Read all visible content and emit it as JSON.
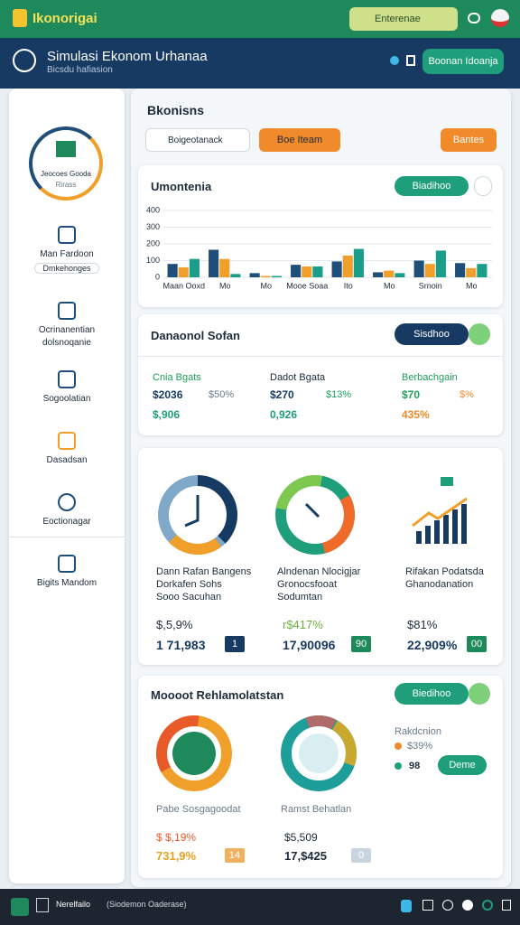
{
  "topbar": {
    "logo": "Ikonorigai",
    "search": "Enterenae"
  },
  "header": {
    "title": "Simulasi Ekonom Urhanaa",
    "subtitle": "Bicsdu hafiasion",
    "button": "Boonan Idoanja"
  },
  "sidebar": {
    "profile": [
      "Jeocoes Gooda",
      "Rirass"
    ],
    "nav": [
      {
        "label": "Man Fardoon",
        "sub": "Dmkehonges"
      },
      {
        "label": "Ocrinanentian",
        "sub": "dolsnoqanie"
      },
      {
        "label": "Sogoolatian"
      },
      {
        "label": "Dasadsan"
      },
      {
        "label": "Eoctionagar"
      },
      {
        "label": "Bigits Mandom"
      }
    ]
  },
  "main": {
    "title": "Bkonisns",
    "search": "Boigeotanack",
    "button1": "Boe Iteam",
    "button2": "Bantes"
  },
  "overview": {
    "title": "Umontenia",
    "button": "Biadihoo",
    "chart": {
      "type": "bar",
      "categories": [
        "Maan Ooxd",
        "Mo",
        "Mo",
        "Mooe Soaa",
        "Ito",
        "Mo",
        "Srnoin",
        "Mo"
      ],
      "series": [
        {
          "color": "#1f4e79",
          "values": [
            80,
            165,
            25,
            75,
            95,
            30,
            100,
            85
          ]
        },
        {
          "color": "#f0a02a",
          "values": [
            60,
            110,
            8,
            65,
            130,
            40,
            80,
            55
          ]
        },
        {
          "color": "#1a9e8a",
          "values": [
            110,
            20,
            8,
            65,
            170,
            25,
            160,
            80
          ]
        }
      ],
      "ylim": [
        0,
        400
      ],
      "yticks": [
        0,
        100,
        200,
        300,
        400
      ],
      "grid": true
    }
  },
  "summary": {
    "title": "Danaonol Sofan",
    "button": "Sisdhoo",
    "columns": [
      {
        "label": "Cnia Bgats",
        "a": "$2036",
        "b": "$50%",
        "c": "$,906"
      },
      {
        "label": "Dadot Bgata",
        "a": "$270",
        "b": "$13%",
        "c": "0,926"
      },
      {
        "label": "Berbachgain",
        "a": "$70",
        "b": "$%",
        "c": "435%"
      }
    ]
  },
  "panels": [
    {
      "text": [
        "Dann Rafan Bangens",
        "Dorkafen Sohs",
        "Sooo Sacuhan"
      ],
      "pct": "$,5,9%",
      "value": "1 71,983",
      "badge": "1"
    },
    {
      "text": [
        "Alndenan Nlocigjar",
        "Gronocsfooat",
        "Sodumtan"
      ],
      "pct": "r$417%",
      "value": "17,90096",
      "badge": "90"
    },
    {
      "text": [
        "Rifakan Podatsda",
        "Ghanodanation"
      ],
      "pct": "$81%",
      "value": "22,909%",
      "badge": "00"
    }
  ],
  "report": {
    "title": "Moooot Rehlamolatstan",
    "button": "Biedihoo",
    "legend": {
      "title": "Rakdcnion",
      "pct": "$39%",
      "num": "98",
      "button": "Deme"
    },
    "items": [
      {
        "label": "Pabe Sosgagoodat",
        "pct": "$ $,19%",
        "value": "731,9%",
        "badge": "14"
      },
      {
        "label": "Ramst Behatlan",
        "pct": "$5,509",
        "value": "17,$425",
        "badge": "0"
      }
    ]
  },
  "taskbar": {
    "app": "Nerelfailo",
    "sub": "(Siodemon Oaderase)"
  }
}
